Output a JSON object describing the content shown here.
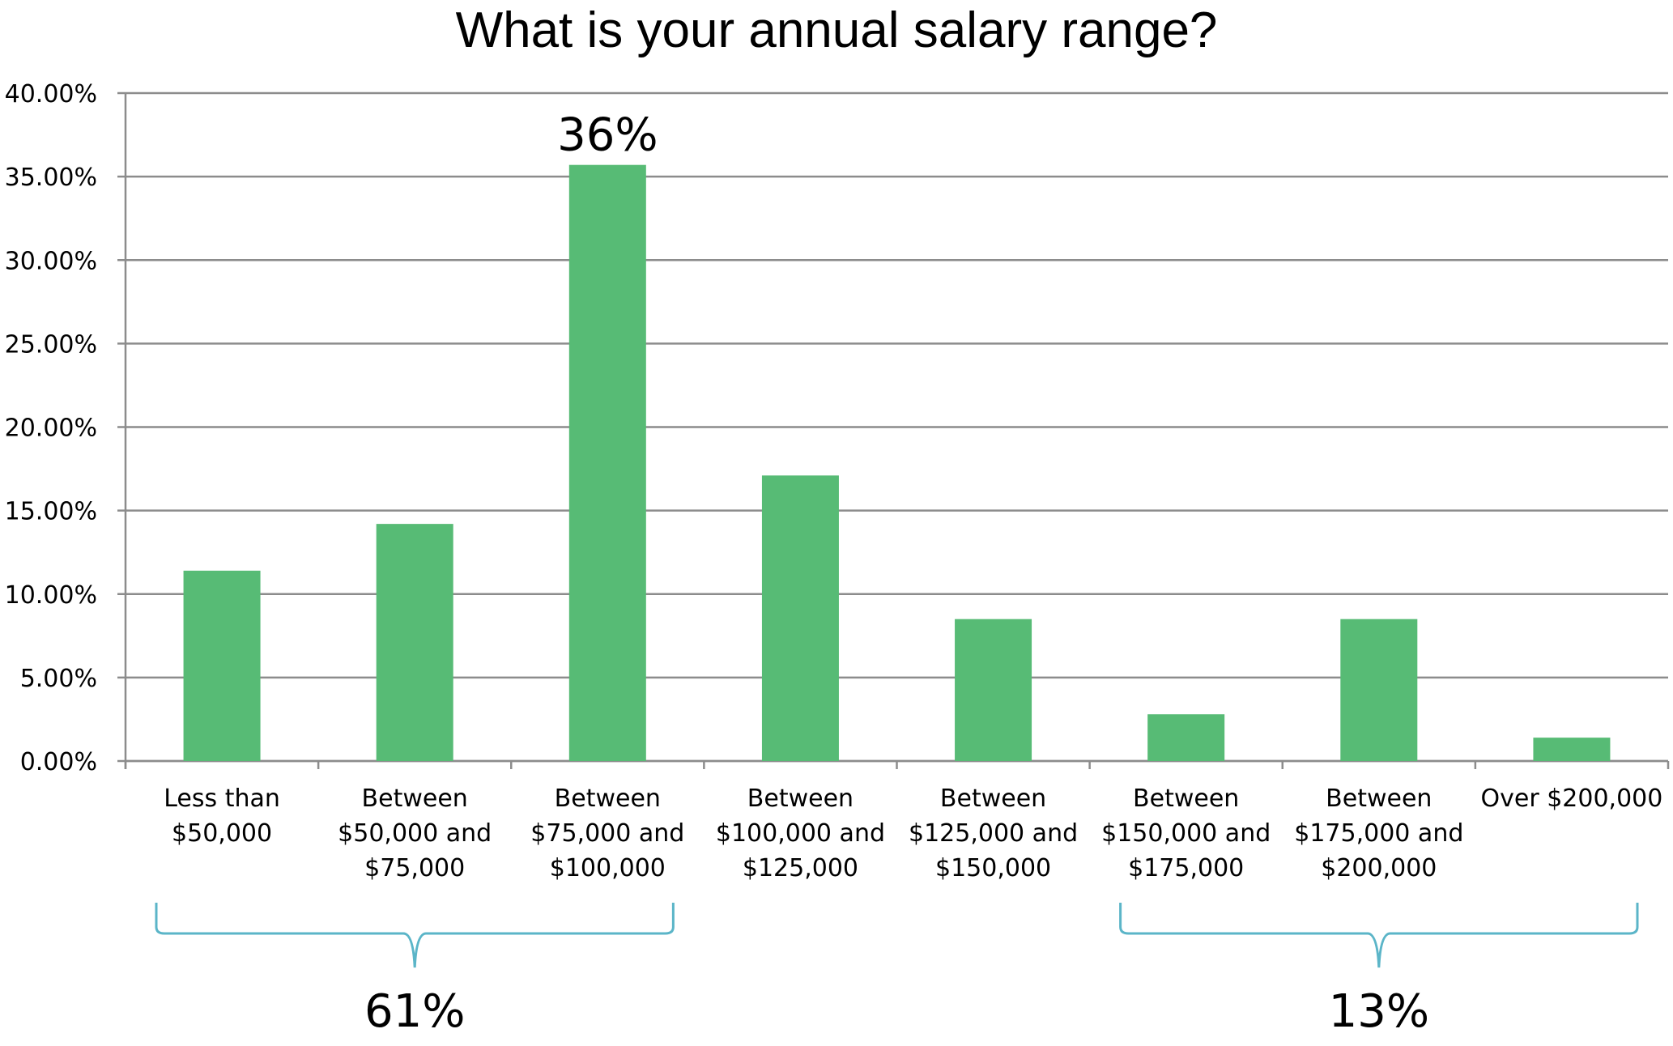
{
  "chart_data": {
    "type": "bar",
    "title": "What is your annual salary range?",
    "xlabel": "",
    "ylabel": "",
    "categories": [
      [
        "Less than",
        "$50,000"
      ],
      [
        "Between",
        "$50,000 and",
        "$75,000"
      ],
      [
        "Between",
        "$75,000 and",
        "$100,000"
      ],
      [
        "Between",
        "$100,000 and",
        "$125,000"
      ],
      [
        "Between",
        "$125,000 and",
        "$150,000"
      ],
      [
        "Between",
        "$150,000 and",
        "$175,000"
      ],
      [
        "Between",
        "$175,000 and",
        "$200,000"
      ],
      [
        "Over $200,000"
      ]
    ],
    "values": [
      11.4,
      14.2,
      35.7,
      17.1,
      8.5,
      2.8,
      8.5,
      1.4
    ],
    "ylim": [
      0,
      40
    ],
    "yticks": [
      0,
      5,
      10,
      15,
      20,
      25,
      30,
      35,
      40
    ],
    "ytick_labels": [
      "0.00%",
      "5.00%",
      "10.00%",
      "15.00%",
      "20.00%",
      "25.00%",
      "30.00%",
      "35.00%",
      "40.00%"
    ],
    "grid": true,
    "legend": "none",
    "bar_color": "#57bb75",
    "bracket_color": "#5bb5c8",
    "data_labels": [
      {
        "category_index": 2,
        "text": "36%"
      }
    ],
    "group_annotations": [
      {
        "from_index": 0,
        "to_index": 2,
        "text": "61%"
      },
      {
        "from_index": 5,
        "to_index": 7,
        "text": "13%"
      }
    ]
  }
}
